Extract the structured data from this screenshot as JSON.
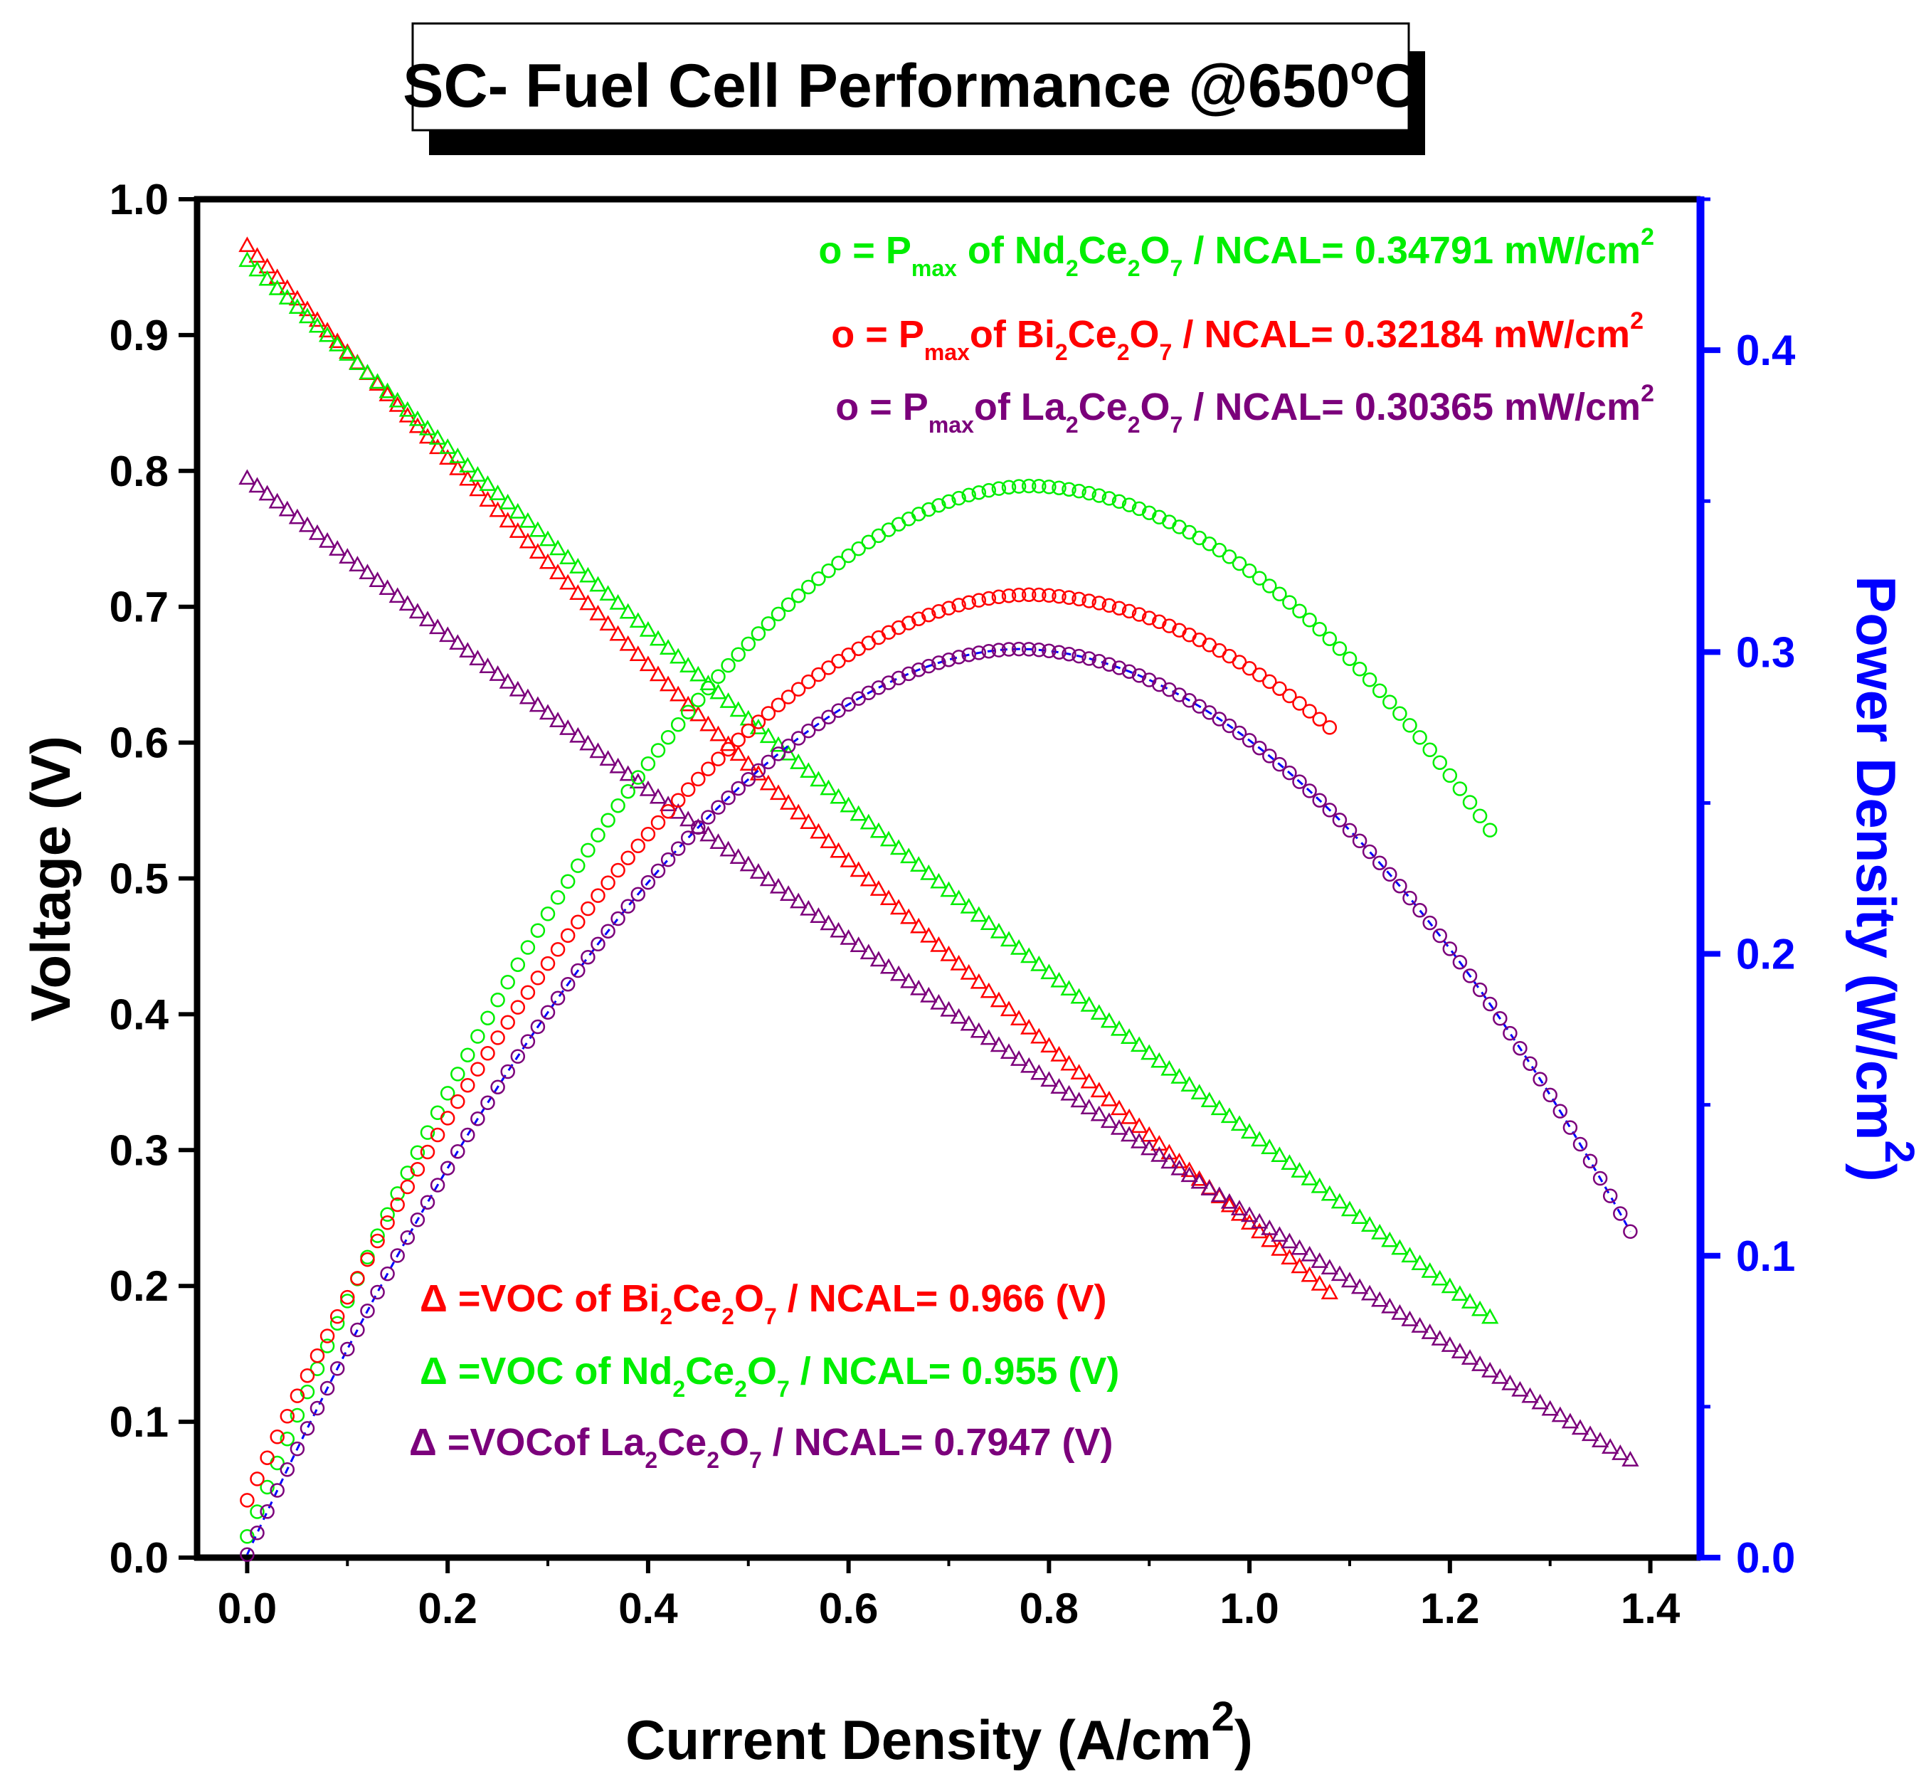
{
  "colors": {
    "green": "#00ee00",
    "red": "#ff0000",
    "purple": "#7b007b",
    "blue": "#0000ff",
    "black": "#000000"
  },
  "chart_data": {
    "type": "scatter",
    "title": "SC- Fuel Cell Performance @650",
    "title_sup": "o",
    "title_end": "C",
    "x_axis": {
      "label": "Current Density (A/cm",
      "label_sup": "2",
      "label_end": ")",
      "range": [
        -0.05,
        1.45
      ],
      "ticks": [
        0.0,
        0.2,
        0.4,
        0.6,
        0.8,
        1.0,
        1.2,
        1.4
      ],
      "tick_labels": [
        "0.0",
        "0.2",
        "0.4",
        "0.6",
        "0.8",
        "1.0",
        "1.2",
        "1.4"
      ]
    },
    "y_left": {
      "label": "Voltage (V)",
      "range": [
        0.0,
        1.0
      ],
      "ticks": [
        0.0,
        0.1,
        0.2,
        0.3,
        0.4,
        0.5,
        0.6,
        0.7,
        0.8,
        0.9,
        1.0
      ],
      "tick_labels": [
        "0.0",
        "0.1",
        "0.2",
        "0.3",
        "0.4",
        "0.5",
        "0.6",
        "0.7",
        "0.8",
        "0.9",
        "1.0"
      ]
    },
    "y_right": {
      "label": "Power Density (W/cm",
      "label_sup": "2",
      "label_end": ")",
      "range": [
        0.0,
        0.45
      ],
      "ticks": [
        0.0,
        0.1,
        0.2,
        0.3,
        0.4
      ],
      "tick_labels": [
        "0.0",
        "0.1",
        "0.2",
        "0.3",
        "0.4"
      ]
    },
    "series": [
      {
        "name": "Bi2Ce2O7 / NCAL voltage",
        "kind": "voltage",
        "marker": "triangle",
        "color": "red",
        "voc": 0.966,
        "x_start": 0.0,
        "x_end": 1.08,
        "step": 0.01,
        "v_end": 0.195
      },
      {
        "name": "Nd2Ce2O7 / NCAL voltage",
        "kind": "voltage",
        "marker": "triangle",
        "color": "green",
        "voc": 0.955,
        "x_start": 0.0,
        "x_end": 1.24,
        "step": 0.01,
        "v_end": 0.177
      },
      {
        "name": "La2Ce2O7 / NCAL voltage",
        "kind": "voltage",
        "marker": "triangle",
        "color": "purple",
        "voc": 0.7947,
        "x_start": 0.0,
        "x_end": 1.38,
        "step": 0.01,
        "v_end": 0.072
      },
      {
        "name": "Nd2Ce2O7 / NCAL power",
        "kind": "power",
        "marker": "circle",
        "color": "green",
        "x_start": 0.0,
        "x_end": 1.24,
        "step": 0.01,
        "p_start": 0.007,
        "p_peak": 0.355,
        "x_peak": 0.78,
        "p_end": 0.241
      },
      {
        "name": "Bi2Ce2O7 / NCAL power",
        "kind": "power",
        "marker": "circle",
        "color": "red",
        "x_start": 0.0,
        "x_end": 1.08,
        "step": 0.01,
        "p_start": 0.019,
        "p_peak": 0.319,
        "x_peak": 0.78,
        "p_end": 0.275
      },
      {
        "name": "La2Ce2O7 / NCAL power",
        "kind": "power",
        "marker": "circle",
        "color": "purple",
        "x_start": 0.0,
        "x_end": 1.38,
        "step": 0.01,
        "p_start": 0.001,
        "p_peak": 0.301,
        "x_peak": 0.77,
        "p_end": 0.108
      }
    ],
    "annotations_top": [
      {
        "color": "green",
        "pre": "o = P",
        "sub1": "max",
        "mid1": " of Nd",
        "sub2": "2",
        "mid2": "Ce",
        "sub3": "2",
        "mid3": "O",
        "sub4": "7",
        "post": " / NCAL= 0.34791 mW/cm",
        "sup": "2"
      },
      {
        "color": "red",
        "pre": "o = P",
        "sub1": "max",
        "mid1": "of Bi",
        "sub2": "2",
        "mid2": "Ce",
        "sub3": "2",
        "mid3": "O",
        "sub4": "7",
        "post": " / NCAL= 0.32184 mW/cm",
        "sup": "2"
      },
      {
        "color": "purple",
        "pre": "o = P",
        "sub1": "max",
        "mid1": "of La",
        "sub2": "2",
        "mid2": "Ce",
        "sub3": "2",
        "mid3": "O",
        "sub4": "7",
        "post": " / NCAL= 0.30365 mW/cm",
        "sup": "2"
      }
    ],
    "annotations_bottom": [
      {
        "color": "red",
        "pre": "Δ =VOC of Bi",
        "sub1": "2",
        "mid1": "Ce",
        "sub2": "2",
        "mid2": "O",
        "sub3": "7",
        "post": " / NCAL= 0.966 (V)"
      },
      {
        "color": "green",
        "pre": "Δ =VOC of Nd",
        "sub1": "2",
        "mid1": "Ce",
        "sub2": "2",
        "mid2": "O",
        "sub3": "7",
        "post": " / NCAL= 0.955 (V)"
      },
      {
        "color": "purple",
        "pre": "Δ =VOCof La",
        "sub1": "2",
        "mid1": "Ce",
        "sub2": "2",
        "mid2": "O",
        "sub3": "7",
        "post": " / NCAL= 0.7947 (V)"
      }
    ]
  }
}
